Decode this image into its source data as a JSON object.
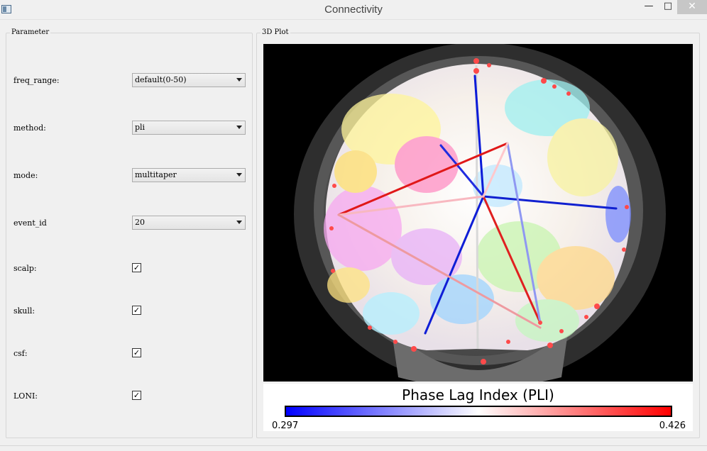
{
  "window": {
    "title": "Connectivity",
    "minimize_glyph": "—",
    "maximize_glyph": "□",
    "close_glyph": "✕"
  },
  "parameter_panel": {
    "title": "Parameter",
    "freq_range": {
      "label": "freq_range:",
      "value": "default(0-50)"
    },
    "method": {
      "label": "method:",
      "value": "pli"
    },
    "mode": {
      "label": "mode:",
      "value": "multitaper"
    },
    "event_id": {
      "label": "event_id",
      "value": "20"
    },
    "scalp": {
      "label": "scalp:",
      "checked": true,
      "glyph": "✓"
    },
    "skull": {
      "label": "skull:",
      "checked": true,
      "glyph": "✓"
    },
    "csf": {
      "label": "csf:",
      "checked": true,
      "glyph": "✓"
    },
    "loni": {
      "label": "LONI:",
      "checked": true,
      "glyph": "✓"
    }
  },
  "plot_panel": {
    "title": "3D Plot",
    "colorbar": {
      "title": "Phase Lag Index (PLI)",
      "min_label": "0.297",
      "max_label": "0.426",
      "min_color": "#0000ff",
      "mid_color": "#ffffff",
      "max_color": "#ff0000"
    }
  }
}
